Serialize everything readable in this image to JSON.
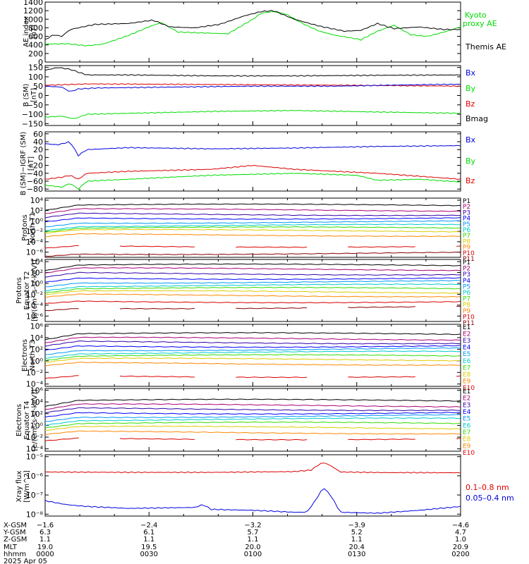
{
  "chart_data": [
    {
      "type": "line",
      "ylabel": [
        "AE index",
        "[nT]"
      ],
      "ylim": [
        0,
        1400
      ],
      "yticks": [
        "0",
        "200",
        "400",
        "600",
        "800",
        "1000",
        "1200",
        "1400"
      ],
      "ytick_values": [
        0,
        200,
        400,
        600,
        800,
        1000,
        1200,
        1400
      ],
      "series": [
        {
          "name": "Kyoto proxy AE",
          "legend": [
            "Kyoto",
            "proxy AE"
          ],
          "color": "#00dd00",
          "points": [
            [
              0,
              420
            ],
            [
              5,
              430
            ],
            [
              10,
              380
            ],
            [
              14,
              420
            ],
            [
              20,
              620
            ],
            [
              26,
              860
            ],
            [
              28,
              920
            ],
            [
              32,
              700
            ],
            [
              38,
              680
            ],
            [
              44,
              660
            ],
            [
              50,
              1000
            ],
            [
              52,
              1140
            ],
            [
              55,
              1180
            ],
            [
              58,
              1120
            ],
            [
              62,
              900
            ],
            [
              66,
              720
            ],
            [
              70,
              620
            ],
            [
              74,
              560
            ],
            [
              76,
              520
            ],
            [
              80,
              720
            ],
            [
              84,
              860
            ],
            [
              88,
              640
            ],
            [
              92,
              600
            ],
            [
              96,
              700
            ],
            [
              100,
              820
            ]
          ]
        },
        {
          "name": "Themis AE",
          "legend": [
            "Themis AE"
          ],
          "color": "#000000",
          "points": [
            [
              0,
              520
            ],
            [
              2,
              640
            ],
            [
              4,
              600
            ],
            [
              6,
              760
            ],
            [
              12,
              880
            ],
            [
              20,
              900
            ],
            [
              26,
              980
            ],
            [
              30,
              820
            ],
            [
              36,
              800
            ],
            [
              42,
              880
            ],
            [
              48,
              1080
            ],
            [
              52,
              1180
            ],
            [
              55,
              1200
            ],
            [
              60,
              1000
            ],
            [
              66,
              840
            ],
            [
              72,
              720
            ],
            [
              76,
              740
            ],
            [
              80,
              900
            ],
            [
              84,
              780
            ],
            [
              90,
              820
            ],
            [
              96,
              760
            ],
            [
              100,
              760
            ]
          ]
        }
      ]
    },
    {
      "type": "line",
      "ylabel": [
        "B (SM)",
        "[nT]"
      ],
      "ylim": [
        -160,
        160
      ],
      "yticks": [
        "−150",
        "−100",
        "−50",
        "0",
        "50",
        "100",
        "150"
      ],
      "ytick_values": [
        -150,
        -100,
        -50,
        0,
        50,
        100,
        150
      ],
      "series": [
        {
          "name": "Bx",
          "color": "#000000",
          "points": [
            [
              0,
              135
            ],
            [
              3,
              150
            ],
            [
              6,
              140
            ],
            [
              10,
              110
            ],
            [
              20,
              110
            ],
            [
              40,
              105
            ],
            [
              60,
              105
            ],
            [
              80,
              108
            ],
            [
              100,
              110
            ]
          ]
        },
        {
          "name": "By",
          "color": "#00dd00",
          "points": [
            [
              0,
              -115
            ],
            [
              4,
              -110
            ],
            [
              7,
              -125
            ],
            [
              10,
              -100
            ],
            [
              20,
              -95
            ],
            [
              40,
              -85
            ],
            [
              60,
              -80
            ],
            [
              80,
              -88
            ],
            [
              100,
              -95
            ]
          ]
        },
        {
          "name": "Bz",
          "color": "#dd0000",
          "points": [
            [
              0,
              55
            ],
            [
              5,
              58
            ],
            [
              10,
              62
            ],
            [
              30,
              60
            ],
            [
              50,
              58
            ],
            [
              70,
              55
            ],
            [
              90,
              52
            ],
            [
              100,
              50
            ]
          ]
        },
        {
          "name": "Bmag",
          "color": "#0000dd",
          "points": [
            [
              0,
              50
            ],
            [
              4,
              45
            ],
            [
              6,
              20
            ],
            [
              8,
              35
            ],
            [
              12,
              40
            ],
            [
              30,
              45
            ],
            [
              50,
              50
            ],
            [
              70,
              50
            ],
            [
              90,
              58
            ],
            [
              100,
              60
            ]
          ]
        }
      ]
    },
    {
      "type": "line",
      "ylabel": [
        "B (SM)−IGRF (SM)",
        "[nT]"
      ],
      "ylim": [
        -85,
        65
      ],
      "yticks": [
        "−80",
        "−60",
        "−40",
        "−20",
        "0",
        "20",
        "40",
        "60"
      ],
      "ytick_values": [
        -80,
        -60,
        -40,
        -20,
        0,
        20,
        40,
        60
      ],
      "series": [
        {
          "name": "Bx",
          "color": "#0000dd",
          "points": [
            [
              0,
              35
            ],
            [
              3,
              32
            ],
            [
              6,
              40
            ],
            [
              8,
              5
            ],
            [
              10,
              20
            ],
            [
              20,
              25
            ],
            [
              40,
              22
            ],
            [
              60,
              24
            ],
            [
              80,
              28
            ],
            [
              100,
              30
            ]
          ]
        },
        {
          "name": "By",
          "color": "#00dd00",
          "points": [
            [
              0,
              -70
            ],
            [
              4,
              -75
            ],
            [
              6,
              -65
            ],
            [
              8,
              -80
            ],
            [
              10,
              -60
            ],
            [
              20,
              -55
            ],
            [
              40,
              -45
            ],
            [
              60,
              -40
            ],
            [
              75,
              -45
            ],
            [
              80,
              -58
            ],
            [
              90,
              -55
            ],
            [
              100,
              -62
            ]
          ]
        },
        {
          "name": "Bz",
          "color": "#dd0000",
          "points": [
            [
              0,
              -55
            ],
            [
              4,
              -50
            ],
            [
              6,
              -45
            ],
            [
              8,
              -55
            ],
            [
              10,
              -40
            ],
            [
              20,
              -35
            ],
            [
              40,
              -30
            ],
            [
              50,
              -20
            ],
            [
              60,
              -30
            ],
            [
              80,
              -40
            ],
            [
              100,
              -55
            ]
          ]
        }
      ]
    },
    {
      "type": "line",
      "ylabel": [
        "Protons",
        "North T1"
      ],
      "log": true,
      "ylim": [
        -7,
        4.4
      ],
      "yticks": [
        "10⁴",
        "10²",
        "10⁰",
        "10⁻²",
        "10⁻⁴",
        "10⁻⁶"
      ],
      "ytick_values": [
        4,
        2,
        0,
        -2,
        -4,
        -6
      ],
      "legend": [
        "P1",
        "P2",
        "P3",
        "P4",
        "P5",
        "P6",
        "P7",
        "P8",
        "P9",
        "P10",
        "P11"
      ],
      "colors": [
        "#000000",
        "#aa0077",
        "#3300aa",
        "#0000ff",
        "#0099ff",
        "#00cccc",
        "#33dd00",
        "#ddcc00",
        "#ff8800",
        "#dd0000",
        "#880000"
      ],
      "base": [
        3.0,
        2.1,
        1.3,
        0.6,
        -0.2,
        -0.9,
        -1.4,
        -1.9,
        -2.7,
        -4.8,
        -6.2
      ],
      "gap_series": [
        9
      ]
    },
    {
      "type": "line",
      "ylabel": [
        "Protons",
        "Equator T2",
        "[p/(cm²-s-sr-keV)]"
      ],
      "log": true,
      "ylim": [
        -7,
        4.4
      ],
      "yticks": [
        "10⁴",
        "10²",
        "10⁰",
        "10⁻²",
        "10⁻⁴",
        "10⁻⁶"
      ],
      "ytick_values": [
        4,
        2,
        0,
        -2,
        -4,
        -6
      ],
      "legend": [
        "P1",
        "P2",
        "P3",
        "P4",
        "P5",
        "P6",
        "P7",
        "P8",
        "P9",
        "P10",
        "P11"
      ],
      "colors": [
        "#000000",
        "#aa0077",
        "#3300aa",
        "#0000ff",
        "#0099ff",
        "#00cccc",
        "#33dd00",
        "#ddcc00",
        "#ff8800",
        "#dd0000",
        "#880000"
      ],
      "base": [
        3.3,
        2.6,
        1.8,
        1.0,
        0.3,
        -0.4,
        -1.0,
        -1.6,
        -2.2,
        -3.3,
        -4.4
      ],
      "gap_series": [
        10
      ]
    },
    {
      "type": "line",
      "ylabel": [
        "Electrons",
        "North T3"
      ],
      "log": true,
      "ylim": [
        -4.4,
        6.3
      ],
      "yticks": [
        "10⁶",
        "10⁴",
        "10²",
        "10⁰",
        "10⁻²",
        "10⁻⁴"
      ],
      "ytick_values": [
        6,
        4,
        2,
        0,
        -2,
        -4
      ],
      "legend": [
        "E1",
        "E2",
        "E3",
        "E4",
        "E5",
        "E6",
        "E7",
        "E8",
        "E9",
        "E10"
      ],
      "colors": [
        "#000000",
        "#aa0077",
        "#3300aa",
        "#0000ff",
        "#0099ff",
        "#00cccc",
        "#33dd00",
        "#ddcc00",
        "#ff8800",
        "#dd0000"
      ],
      "base": [
        4.6,
        3.8,
        3.2,
        2.6,
        2.0,
        1.4,
        0.8,
        0.2,
        -0.5,
        -2.6
      ],
      "gap_series": [
        9
      ]
    },
    {
      "type": "line",
      "ylabel": [
        "Electrons",
        "Equator T4",
        "[e/(cm²-s-sr-keV)]"
      ],
      "log": true,
      "ylim": [
        -4.4,
        6.3
      ],
      "yticks": [
        "10⁶",
        "10⁴",
        "10²",
        "10⁰",
        "10⁻²",
        "10⁻⁴"
      ],
      "ytick_values": [
        6,
        4,
        2,
        0,
        -2,
        -4
      ],
      "legend": [
        "E1",
        "E2",
        "E3",
        "E4",
        "E5",
        "E6",
        "E7",
        "E8",
        "E9",
        "E10"
      ],
      "colors": [
        "#000000",
        "#aa0077",
        "#3300aa",
        "#0000ff",
        "#0099ff",
        "#00cccc",
        "#33dd00",
        "#ddcc00",
        "#ff8800",
        "#dd0000"
      ],
      "base": [
        4.2,
        3.4,
        2.8,
        2.2,
        1.6,
        1.0,
        0.3,
        -0.4,
        -1.2,
        -2.2
      ],
      "gap_series": [
        9
      ]
    },
    {
      "type": "line",
      "ylabel": [
        "Xray flux",
        "[W/m^2]"
      ],
      "log": true,
      "ylim": [
        -8.1,
        -4.9
      ],
      "yticks": [
        "10⁻⁵",
        "10⁻⁶",
        "10⁻⁷",
        "10⁻⁸"
      ],
      "ytick_values": [
        -5,
        -6,
        -7,
        -8
      ],
      "series": [
        {
          "name": "0.1–0.8 nm",
          "color": "#dd0000",
          "points": [
            [
              0,
              -5.8
            ],
            [
              20,
              -5.82
            ],
            [
              40,
              -5.82
            ],
            [
              60,
              -5.78
            ],
            [
              64,
              -5.7
            ],
            [
              66,
              -5.4
            ],
            [
              67,
              -5.3
            ],
            [
              69,
              -5.5
            ],
            [
              71,
              -5.8
            ],
            [
              80,
              -5.83
            ],
            [
              100,
              -5.84
            ]
          ]
        },
        {
          "name": "0.05–0.4 nm",
          "color": "#0000dd",
          "points": [
            [
              0,
              -7.3
            ],
            [
              5,
              -7.5
            ],
            [
              10,
              -7.6
            ],
            [
              20,
              -7.7
            ],
            [
              36,
              -7.65
            ],
            [
              38,
              -7.5
            ],
            [
              40,
              -7.75
            ],
            [
              50,
              -7.8
            ],
            [
              60,
              -7.9
            ],
            [
              63,
              -7.9
            ],
            [
              65,
              -7.3
            ],
            [
              67,
              -6.6
            ],
            [
              69,
              -7.1
            ],
            [
              71,
              -7.9
            ],
            [
              80,
              -7.95
            ],
            [
              90,
              -7.8
            ],
            [
              100,
              -7.6
            ]
          ]
        }
      ]
    }
  ],
  "x_axis": {
    "row_labels": [
      "X-GSM",
      "Y-GSM",
      "Z-GSM",
      "MLT",
      "hhmm",
      "2025 Apr 05"
    ],
    "ticks": [
      {
        "pos": 0,
        "values": [
          "−1.6",
          "6.3",
          "1.1",
          "19.0",
          "0000"
        ]
      },
      {
        "pos": 25,
        "values": [
          "−2.4",
          "6.1",
          "1.1",
          "19.5",
          "0030"
        ]
      },
      {
        "pos": 50,
        "values": [
          "−3.2",
          "5.7",
          "1.1",
          "20.0",
          "0100"
        ]
      },
      {
        "pos": 75,
        "values": [
          "−3.9",
          "5.2",
          "1.1",
          "20.4",
          "0130"
        ]
      },
      {
        "pos": 100,
        "values": [
          "−4.6",
          "4.7",
          "1.0",
          "20.9",
          "0200"
        ]
      }
    ]
  }
}
